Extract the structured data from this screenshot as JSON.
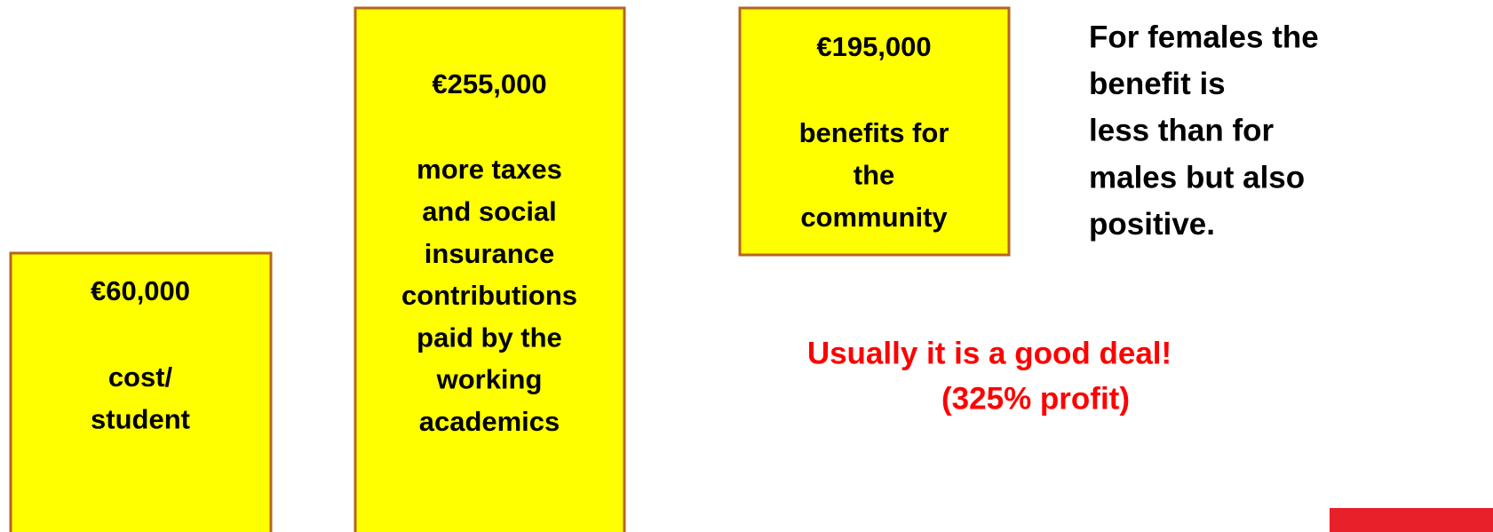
{
  "boxes": [
    {
      "amount": "€60,000",
      "lines": [
        "cost/",
        "student"
      ]
    },
    {
      "amount": "€255,000",
      "lines": [
        "more taxes",
        "and social",
        "insurance",
        "contributions",
        "paid by the",
        "working",
        "academics"
      ]
    },
    {
      "amount": "€195,000",
      "lines": [
        "benefits for",
        "the",
        "community"
      ]
    }
  ],
  "note": {
    "lines": [
      "For females the",
      "benefit is",
      "less than for",
      "males but also",
      "positive."
    ]
  },
  "conclusion": {
    "lines": [
      "Usually it is a good deal!",
      "(325% profit)"
    ]
  }
}
